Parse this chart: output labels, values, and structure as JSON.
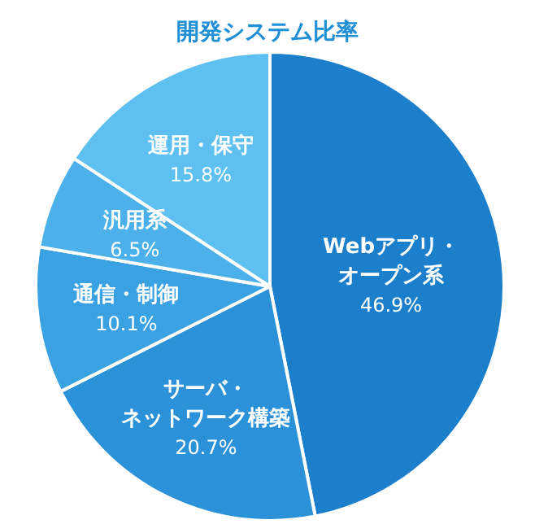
{
  "chart_data": {
    "type": "pie",
    "title": "開発システム比率",
    "categories": [
      "Webアプリ・オープン系",
      "サーバ・ネットワーク構築",
      "通信・制御",
      "汎用系",
      "運用・保守"
    ],
    "values": [
      46.9,
      20.7,
      10.1,
      6.5,
      15.8
    ],
    "value_labels": [
      "46.9%",
      "20.7%",
      "10.1%",
      "6.5%",
      "15.8%"
    ],
    "colors": [
      "#1c7fcb",
      "#2b91d9",
      "#3aa1e2",
      "#4cb1ea",
      "#5ec0f0"
    ]
  }
}
